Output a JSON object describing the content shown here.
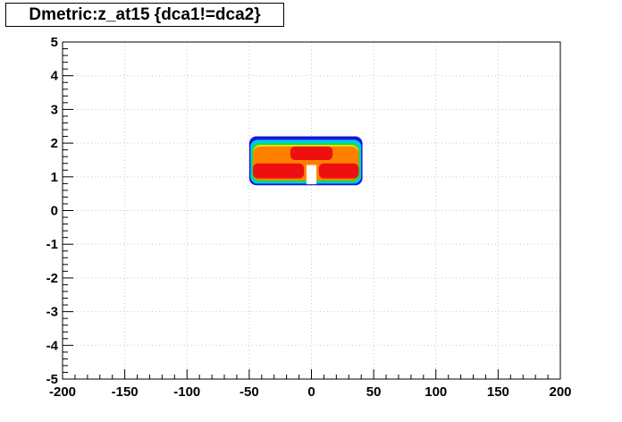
{
  "chart_data": {
    "type": "heatmap",
    "title": "Dmetric:z_at15 {dca1!=dca2}",
    "xlabel": "",
    "ylabel": "",
    "xlim": [
      -200,
      200
    ],
    "ylim": [
      -5,
      5
    ],
    "grid": true,
    "x_ticks": [
      -200,
      -150,
      -100,
      -50,
      0,
      50,
      100,
      150,
      200
    ],
    "y_ticks": [
      -5,
      -4,
      -3,
      -2,
      -1,
      0,
      1,
      2,
      3,
      4,
      5
    ],
    "x_tick_labels": [
      "-200",
      "-150",
      "-100",
      "-50",
      "0",
      "50",
      "100",
      "150",
      "200"
    ],
    "y_tick_labels": [
      "-5",
      "-4",
      "-3",
      "-2",
      "-1",
      "0",
      "1",
      "2",
      "3",
      "4",
      "5"
    ],
    "density_regions": [
      {
        "level": "low",
        "color": "#1818d8",
        "x_range": [
          -50,
          41
        ],
        "y_range": [
          0.75,
          2.2
        ]
      },
      {
        "level": "medium",
        "color": "#00c8f0",
        "x_range": [
          -49,
          40
        ],
        "y_range": [
          0.8,
          2.1
        ]
      },
      {
        "level": "medium-high",
        "color": "#10e040",
        "x_range": [
          -48,
          39
        ],
        "y_range": [
          0.85,
          2.0
        ]
      },
      {
        "level": "high",
        "color": "#f0e000",
        "x_range": [
          -47,
          38
        ],
        "y_range": [
          0.9,
          1.95
        ]
      },
      {
        "level": "higher",
        "color": "#ff8000",
        "x_range": [
          -47,
          38
        ],
        "y_range": [
          0.9,
          1.9
        ]
      },
      {
        "level": "peak-left",
        "color": "#ee1010",
        "x_range": [
          -47,
          -6
        ],
        "y_range": [
          0.95,
          1.4
        ]
      },
      {
        "level": "peak-center",
        "color": "#ee1010",
        "x_range": [
          -17,
          17
        ],
        "y_range": [
          1.5,
          1.9
        ]
      },
      {
        "level": "peak-right",
        "color": "#ee1010",
        "x_range": [
          6,
          38
        ],
        "y_range": [
          0.95,
          1.4
        ]
      }
    ]
  }
}
